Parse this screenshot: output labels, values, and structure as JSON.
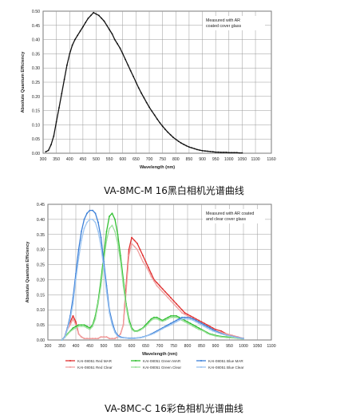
{
  "captions": {
    "top": "VA-8MC-M 16黑白相机光谱曲线",
    "bottom": "VA-8MC-C 16彩色相机光谱曲线"
  },
  "chart_data": [
    {
      "type": "line",
      "title": "",
      "xlabel": "Wavelength (nm)",
      "ylabel": "Absolute Quantum Efficiency",
      "xlim": [
        300,
        1160
      ],
      "ylim": [
        0,
        0.5
      ],
      "xticks": [
        "300",
        "350",
        "400",
        "450",
        "500",
        "550",
        "600",
        "650",
        "700",
        "750",
        "800",
        "850",
        "900",
        "950",
        "1000",
        "1050",
        "1100",
        "1160"
      ],
      "yticks": [
        "0.00",
        "0.05",
        "0.10",
        "0.15",
        "0.20",
        "0.25",
        "0.30",
        "0.35",
        "0.40",
        "0.45",
        "0.50"
      ],
      "annotation": [
        "Measured with AR",
        "coated cover glass"
      ],
      "grid": true,
      "series": [
        {
          "color": "#111111",
          "x": [
            310,
            320,
            330,
            340,
            350,
            360,
            370,
            380,
            390,
            400,
            410,
            420,
            430,
            440,
            450,
            460,
            470,
            480,
            490,
            500,
            510,
            520,
            530,
            540,
            550,
            560,
            570,
            580,
            590,
            600,
            610,
            620,
            630,
            640,
            650,
            660,
            670,
            680,
            690,
            700,
            710,
            720,
            730,
            740,
            750,
            760,
            770,
            780,
            790,
            800,
            810,
            820,
            830,
            840,
            850,
            860,
            870,
            880,
            890,
            900,
            910,
            920,
            930,
            940,
            950,
            960,
            970,
            980,
            990,
            1000,
            1010,
            1020,
            1030,
            1040,
            1050
          ],
          "y": [
            0.005,
            0.01,
            0.03,
            0.06,
            0.11,
            0.16,
            0.21,
            0.26,
            0.31,
            0.35,
            0.38,
            0.4,
            0.415,
            0.43,
            0.445,
            0.46,
            0.475,
            0.485,
            0.495,
            0.49,
            0.485,
            0.475,
            0.465,
            0.45,
            0.435,
            0.42,
            0.4,
            0.385,
            0.37,
            0.35,
            0.33,
            0.31,
            0.29,
            0.27,
            0.25,
            0.23,
            0.212,
            0.195,
            0.178,
            0.162,
            0.148,
            0.134,
            0.12,
            0.107,
            0.095,
            0.084,
            0.074,
            0.065,
            0.056,
            0.049,
            0.042,
            0.036,
            0.031,
            0.026,
            0.022,
            0.019,
            0.016,
            0.013,
            0.011,
            0.009,
            0.008,
            0.007,
            0.006,
            0.005,
            0.004,
            0.004,
            0.003,
            0.003,
            0.003,
            0.002,
            0.002,
            0.002,
            0.002,
            0.001,
            0.001
          ]
        }
      ]
    },
    {
      "type": "line",
      "title": "",
      "xlabel": "Wavelength (nm)",
      "ylabel": "Absolute Quantum Efficiency",
      "xlim": [
        300,
        1100
      ],
      "ylim": [
        0,
        0.45
      ],
      "xticks": [
        "300",
        "350",
        "400",
        "450",
        "500",
        "550",
        "600",
        "650",
        "700",
        "750",
        "800",
        "850",
        "900",
        "950",
        "1000",
        "1050",
        "1100"
      ],
      "yticks": [
        "0.00",
        "0.05",
        "0.10",
        "0.15",
        "0.20",
        "0.25",
        "0.30",
        "0.35",
        "0.40",
        "0.45"
      ],
      "annotation": [
        "Measured with AR coated",
        "and clear cover glass"
      ],
      "grid": true,
      "series": [
        {
          "name": "KAI-08051 Red MAR",
          "color": "#e03030",
          "x": [
            350,
            360,
            370,
            380,
            390,
            400,
            410,
            420,
            430,
            440,
            450,
            460,
            470,
            480,
            490,
            500,
            510,
            520,
            530,
            540,
            550,
            560,
            570,
            580,
            590,
            600,
            610,
            620,
            630,
            640,
            650,
            660,
            670,
            680,
            690,
            700,
            710,
            720,
            730,
            740,
            750,
            760,
            770,
            780,
            790,
            800,
            810,
            820,
            830,
            840,
            850,
            860,
            870,
            880,
            890,
            900,
            920,
            940,
            960,
            980,
            1000
          ],
          "y": [
            0.0,
            0.01,
            0.04,
            0.06,
            0.08,
            0.06,
            0.02,
            0.01,
            0.005,
            0.005,
            0.005,
            0.005,
            0.005,
            0.005,
            0.01,
            0.01,
            0.01,
            0.005,
            0.005,
            0.005,
            0.01,
            0.02,
            0.05,
            0.18,
            0.3,
            0.34,
            0.33,
            0.32,
            0.3,
            0.28,
            0.26,
            0.24,
            0.22,
            0.2,
            0.19,
            0.18,
            0.17,
            0.16,
            0.15,
            0.14,
            0.13,
            0.12,
            0.11,
            0.1,
            0.09,
            0.085,
            0.08,
            0.075,
            0.07,
            0.065,
            0.06,
            0.055,
            0.05,
            0.045,
            0.04,
            0.035,
            0.03,
            0.02,
            0.015,
            0.01,
            0.005
          ]
        },
        {
          "name": "KAI-08051 Red Clear",
          "color": "#f0a0a0",
          "x": [
            350,
            360,
            370,
            380,
            390,
            400,
            410,
            420,
            430,
            440,
            450,
            460,
            470,
            480,
            490,
            500,
            510,
            520,
            530,
            540,
            550,
            560,
            570,
            580,
            590,
            600,
            610,
            620,
            630,
            640,
            650,
            660,
            670,
            680,
            690,
            700,
            710,
            720,
            730,
            740,
            750,
            760,
            770,
            780,
            790,
            800,
            810,
            820,
            830,
            840,
            850,
            860,
            870,
            880,
            890,
            900,
            920,
            940,
            960,
            980,
            1000
          ],
          "y": [
            0.0,
            0.01,
            0.035,
            0.05,
            0.07,
            0.05,
            0.02,
            0.01,
            0.005,
            0.005,
            0.005,
            0.005,
            0.005,
            0.005,
            0.01,
            0.01,
            0.01,
            0.005,
            0.005,
            0.005,
            0.01,
            0.02,
            0.05,
            0.16,
            0.28,
            0.32,
            0.31,
            0.3,
            0.28,
            0.26,
            0.245,
            0.23,
            0.21,
            0.195,
            0.18,
            0.17,
            0.16,
            0.15,
            0.14,
            0.13,
            0.12,
            0.11,
            0.1,
            0.09,
            0.085,
            0.08,
            0.075,
            0.07,
            0.065,
            0.06,
            0.055,
            0.05,
            0.045,
            0.04,
            0.035,
            0.03,
            0.025,
            0.02,
            0.015,
            0.01,
            0.005
          ]
        },
        {
          "name": "KAI-08051 Green MAR",
          "color": "#2fbf2f",
          "x": [
            350,
            360,
            370,
            380,
            390,
            400,
            410,
            420,
            430,
            440,
            450,
            460,
            470,
            480,
            490,
            500,
            510,
            520,
            530,
            540,
            550,
            560,
            570,
            580,
            590,
            600,
            610,
            620,
            630,
            640,
            650,
            660,
            670,
            680,
            690,
            700,
            710,
            720,
            730,
            740,
            750,
            760,
            770,
            780,
            790,
            800,
            810,
            820,
            830,
            840,
            850,
            860,
            870,
            880,
            890,
            900,
            920,
            940,
            960,
            980,
            1000
          ],
          "y": [
            0.0,
            0.01,
            0.02,
            0.03,
            0.04,
            0.045,
            0.05,
            0.05,
            0.05,
            0.045,
            0.04,
            0.05,
            0.08,
            0.13,
            0.2,
            0.28,
            0.36,
            0.41,
            0.42,
            0.4,
            0.35,
            0.28,
            0.2,
            0.12,
            0.07,
            0.04,
            0.03,
            0.03,
            0.035,
            0.04,
            0.05,
            0.06,
            0.07,
            0.075,
            0.075,
            0.07,
            0.065,
            0.07,
            0.075,
            0.08,
            0.08,
            0.08,
            0.075,
            0.07,
            0.065,
            0.06,
            0.055,
            0.05,
            0.045,
            0.04,
            0.035,
            0.03,
            0.025,
            0.02,
            0.018,
            0.015,
            0.012,
            0.01,
            0.008,
            0.006,
            0.004
          ]
        },
        {
          "name": "KAI-08051 Green Clear",
          "color": "#9ae09a",
          "x": [
            350,
            360,
            370,
            380,
            390,
            400,
            410,
            420,
            430,
            440,
            450,
            460,
            470,
            480,
            490,
            500,
            510,
            520,
            530,
            540,
            550,
            560,
            570,
            580,
            590,
            600,
            610,
            620,
            630,
            640,
            650,
            660,
            670,
            680,
            690,
            700,
            710,
            720,
            730,
            740,
            750,
            760,
            770,
            780,
            790,
            800,
            810,
            820,
            830,
            840,
            850,
            860,
            870,
            880,
            890,
            900,
            920,
            940,
            960,
            980,
            1000
          ],
          "y": [
            0.0,
            0.008,
            0.018,
            0.028,
            0.035,
            0.04,
            0.045,
            0.045,
            0.045,
            0.04,
            0.035,
            0.045,
            0.07,
            0.12,
            0.18,
            0.26,
            0.33,
            0.37,
            0.38,
            0.36,
            0.32,
            0.26,
            0.18,
            0.11,
            0.06,
            0.035,
            0.028,
            0.028,
            0.032,
            0.038,
            0.045,
            0.055,
            0.065,
            0.07,
            0.07,
            0.065,
            0.062,
            0.065,
            0.07,
            0.075,
            0.075,
            0.075,
            0.07,
            0.065,
            0.06,
            0.055,
            0.05,
            0.045,
            0.04,
            0.035,
            0.032,
            0.028,
            0.022,
            0.018,
            0.016,
            0.013,
            0.01,
            0.008,
            0.007,
            0.005,
            0.003
          ]
        },
        {
          "name": "KAI-08051 Blue MAR",
          "color": "#3a7fd8",
          "x": [
            350,
            360,
            370,
            380,
            390,
            400,
            410,
            420,
            430,
            440,
            450,
            460,
            470,
            480,
            490,
            500,
            510,
            520,
            530,
            540,
            550,
            560,
            570,
            580,
            590,
            600,
            610,
            620,
            630,
            640,
            650,
            660,
            670,
            680,
            690,
            700,
            710,
            720,
            730,
            740,
            750,
            760,
            770,
            780,
            790,
            800,
            810,
            820,
            830,
            840,
            850,
            860,
            870,
            880,
            890,
            900,
            920,
            940,
            960,
            980,
            1000
          ],
          "y": [
            0.0,
            0.01,
            0.04,
            0.08,
            0.14,
            0.22,
            0.3,
            0.36,
            0.4,
            0.42,
            0.43,
            0.43,
            0.42,
            0.39,
            0.34,
            0.26,
            0.18,
            0.1,
            0.06,
            0.03,
            0.015,
            0.01,
            0.008,
            0.007,
            0.006,
            0.006,
            0.006,
            0.007,
            0.008,
            0.01,
            0.013,
            0.016,
            0.02,
            0.025,
            0.03,
            0.035,
            0.04,
            0.045,
            0.05,
            0.055,
            0.06,
            0.065,
            0.07,
            0.075,
            0.075,
            0.075,
            0.073,
            0.07,
            0.065,
            0.06,
            0.055,
            0.05,
            0.045,
            0.04,
            0.035,
            0.03,
            0.022,
            0.016,
            0.012,
            0.008,
            0.005
          ]
        },
        {
          "name": "KAI-08051 Blue Clear",
          "color": "#9cc4f0",
          "x": [
            350,
            360,
            370,
            380,
            390,
            400,
            410,
            420,
            430,
            440,
            450,
            460,
            470,
            480,
            490,
            500,
            510,
            520,
            530,
            540,
            550,
            560,
            570,
            580,
            590,
            600,
            610,
            620,
            630,
            640,
            650,
            660,
            670,
            680,
            690,
            700,
            710,
            720,
            730,
            740,
            750,
            760,
            770,
            780,
            790,
            800,
            810,
            820,
            830,
            840,
            850,
            860,
            870,
            880,
            890,
            900,
            920,
            940,
            960,
            980,
            1000
          ],
          "y": [
            0.0,
            0.008,
            0.035,
            0.07,
            0.12,
            0.2,
            0.27,
            0.33,
            0.37,
            0.39,
            0.4,
            0.4,
            0.39,
            0.36,
            0.31,
            0.24,
            0.16,
            0.09,
            0.05,
            0.025,
            0.012,
            0.008,
            0.007,
            0.006,
            0.005,
            0.005,
            0.005,
            0.006,
            0.007,
            0.009,
            0.012,
            0.015,
            0.018,
            0.022,
            0.027,
            0.032,
            0.037,
            0.042,
            0.046,
            0.05,
            0.055,
            0.06,
            0.065,
            0.07,
            0.07,
            0.07,
            0.068,
            0.065,
            0.06,
            0.055,
            0.05,
            0.045,
            0.04,
            0.035,
            0.03,
            0.027,
            0.02,
            0.015,
            0.011,
            0.007,
            0.004
          ]
        }
      ]
    }
  ]
}
